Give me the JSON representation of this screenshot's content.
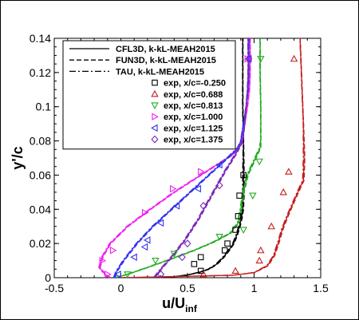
{
  "chart_data": {
    "type": "line",
    "xlabel": "u/U",
    "xlabel_sub": "inf",
    "ylabel": "y'/c",
    "xlim": [
      -0.5,
      1.5
    ],
    "ylim": [
      0,
      0.14
    ],
    "xticks": [
      -0.5,
      0,
      0.5,
      1,
      1.5
    ],
    "xtick_labels": [
      "-0.5",
      "0",
      "0.5",
      "1",
      "1.5"
    ],
    "yticks": [
      0,
      0.02,
      0.04,
      0.06,
      0.08,
      0.1,
      0.12,
      0.14
    ],
    "ytick_labels": [
      "0",
      "0.02",
      "0.04",
      "0.06",
      "0.08",
      "0.1",
      "0.12",
      "0.14"
    ],
    "legend_placement": "top-left",
    "line_styles": [
      {
        "name": "CFL3D, k-kL-MEAH2015",
        "dash": "solid"
      },
      {
        "name": "FUN3D, k-kL-MEAH2015",
        "dash": "dashed"
      },
      {
        "name": "TAU, k-kL-MEAH2015",
        "dash": "dashdot"
      }
    ],
    "series": [
      {
        "name": "exp, x/c=-0.250",
        "marker": "square",
        "color": "#000000",
        "cfd": [
          [
            0.36,
            0.0
          ],
          [
            0.4,
            0.0006
          ],
          [
            0.5,
            0.0016
          ],
          [
            0.58,
            0.003
          ],
          [
            0.66,
            0.005
          ],
          [
            0.72,
            0.008
          ],
          [
            0.77,
            0.012
          ],
          [
            0.81,
            0.016
          ],
          [
            0.845,
            0.02
          ],
          [
            0.87,
            0.025
          ],
          [
            0.89,
            0.03
          ],
          [
            0.905,
            0.035
          ],
          [
            0.915,
            0.04
          ],
          [
            0.92,
            0.05
          ],
          [
            0.92,
            0.06
          ],
          [
            0.92,
            0.08
          ],
          [
            0.915,
            0.1
          ],
          [
            0.915,
            0.12
          ],
          [
            0.915,
            0.14
          ]
        ],
        "exp": [
          [
            0.6,
            0.004
          ],
          [
            0.55,
            0.008
          ],
          [
            0.6,
            0.012
          ],
          [
            0.78,
            0.016
          ],
          [
            0.8,
            0.02
          ],
          [
            0.86,
            0.028
          ],
          [
            0.88,
            0.036
          ],
          [
            0.89,
            0.048
          ],
          [
            0.92,
            0.06
          ]
        ]
      },
      {
        "name": "exp, x/c=0.688",
        "marker": "triangle-up",
        "color": "#c41e1e",
        "cfd": [
          [
            0.0,
            0.0
          ],
          [
            0.3,
            0.0005
          ],
          [
            0.6,
            0.001
          ],
          [
            0.85,
            0.0015
          ],
          [
            1.0,
            0.003
          ],
          [
            1.1,
            0.007
          ],
          [
            1.15,
            0.013
          ],
          [
            1.18,
            0.02
          ],
          [
            1.21,
            0.028
          ],
          [
            1.25,
            0.036
          ],
          [
            1.3,
            0.045
          ],
          [
            1.34,
            0.052
          ],
          [
            1.37,
            0.057
          ],
          [
            1.375,
            0.07
          ],
          [
            1.37,
            0.09
          ],
          [
            1.36,
            0.11
          ],
          [
            1.35,
            0.13
          ],
          [
            1.345,
            0.14
          ]
        ],
        "exp": [
          [
            0.62,
            0.002
          ],
          [
            0.86,
            0.004
          ],
          [
            1.04,
            0.01
          ],
          [
            1.05,
            0.016
          ],
          [
            1.13,
            0.03
          ],
          [
            1.22,
            0.05
          ],
          [
            1.26,
            0.062
          ],
          [
            1.3,
            0.128
          ]
        ]
      },
      {
        "name": "exp, x/c=0.813",
        "marker": "triangle-down",
        "color": "#22aa22",
        "cfd": [
          [
            -0.04,
            0.0
          ],
          [
            0.05,
            0.002
          ],
          [
            0.2,
            0.006
          ],
          [
            0.38,
            0.011
          ],
          [
            0.55,
            0.016
          ],
          [
            0.7,
            0.021
          ],
          [
            0.82,
            0.026
          ],
          [
            0.88,
            0.032
          ],
          [
            0.9,
            0.04
          ],
          [
            0.92,
            0.05
          ],
          [
            0.95,
            0.06
          ],
          [
            1.01,
            0.07
          ],
          [
            1.045,
            0.076
          ],
          [
            1.05,
            0.08
          ],
          [
            1.05,
            0.1
          ],
          [
            1.045,
            0.12
          ],
          [
            1.045,
            0.14
          ]
        ],
        "exp": [
          [
            0.05,
            0.002
          ],
          [
            0.26,
            0.01
          ],
          [
            0.4,
            0.014
          ],
          [
            0.74,
            0.024
          ],
          [
            0.92,
            0.028
          ],
          [
            0.99,
            0.048
          ],
          [
            1.04,
            0.068
          ],
          [
            1.05,
            0.128
          ]
        ]
      },
      {
        "name": "exp, x/c=1.000",
        "marker": "triangle-right",
        "color": "#ee22ee",
        "cfd": [
          [
            -0.08,
            0.0
          ],
          [
            -0.12,
            0.002
          ],
          [
            -0.16,
            0.006
          ],
          [
            -0.14,
            0.012
          ],
          [
            -0.08,
            0.02
          ],
          [
            0.05,
            0.03
          ],
          [
            0.22,
            0.04
          ],
          [
            0.4,
            0.05
          ],
          [
            0.56,
            0.058
          ],
          [
            0.72,
            0.066
          ],
          [
            0.84,
            0.072
          ],
          [
            0.9,
            0.078
          ],
          [
            0.93,
            0.09
          ],
          [
            0.95,
            0.1
          ],
          [
            0.965,
            0.11
          ],
          [
            0.97,
            0.12
          ],
          [
            0.97,
            0.14
          ]
        ],
        "exp": [
          [
            -0.1,
            0.002
          ],
          [
            -0.14,
            0.01
          ],
          [
            -0.06,
            0.016
          ],
          [
            0.18,
            0.038
          ],
          [
            0.39,
            0.052
          ],
          [
            0.6,
            0.062
          ],
          [
            0.95,
            0.128
          ]
        ]
      },
      {
        "name": "exp, x/c=1.125",
        "marker": "triangle-left",
        "color": "#3333ee",
        "cfd": [
          [
            -0.05,
            0.0
          ],
          [
            -0.03,
            0.004
          ],
          [
            0.02,
            0.01
          ],
          [
            0.12,
            0.02
          ],
          [
            0.24,
            0.03
          ],
          [
            0.38,
            0.04
          ],
          [
            0.52,
            0.05
          ],
          [
            0.66,
            0.06
          ],
          [
            0.8,
            0.07
          ],
          [
            0.88,
            0.076
          ],
          [
            0.9,
            0.08
          ],
          [
            0.92,
            0.09
          ],
          [
            0.94,
            0.1
          ],
          [
            0.955,
            0.11
          ],
          [
            0.96,
            0.12
          ],
          [
            0.96,
            0.14
          ]
        ],
        "exp": [
          [
            -0.02,
            0.002
          ],
          [
            0.1,
            0.012
          ],
          [
            0.18,
            0.018
          ],
          [
            0.2,
            0.022
          ],
          [
            0.3,
            0.032
          ],
          [
            0.42,
            0.042
          ],
          [
            0.58,
            0.052
          ],
          [
            0.74,
            0.066
          ],
          [
            0.96,
            0.128
          ]
        ]
      },
      {
        "name": "exp, x/c=1.375",
        "marker": "diamond",
        "color": "#7a2ab8",
        "cfd": [
          [
            0.25,
            0.0
          ],
          [
            0.3,
            0.005
          ],
          [
            0.38,
            0.012
          ],
          [
            0.48,
            0.022
          ],
          [
            0.58,
            0.034
          ],
          [
            0.68,
            0.048
          ],
          [
            0.78,
            0.062
          ],
          [
            0.86,
            0.072
          ],
          [
            0.9,
            0.078
          ],
          [
            0.915,
            0.08
          ],
          [
            0.93,
            0.09
          ],
          [
            0.94,
            0.1
          ],
          [
            0.95,
            0.11
          ],
          [
            0.955,
            0.12
          ],
          [
            0.955,
            0.14
          ]
        ],
        "exp": [
          [
            0.3,
            0.002
          ],
          [
            0.46,
            0.012
          ],
          [
            0.5,
            0.02
          ],
          [
            0.62,
            0.042
          ],
          [
            0.74,
            0.054
          ],
          [
            0.96,
            0.128
          ]
        ]
      }
    ]
  }
}
